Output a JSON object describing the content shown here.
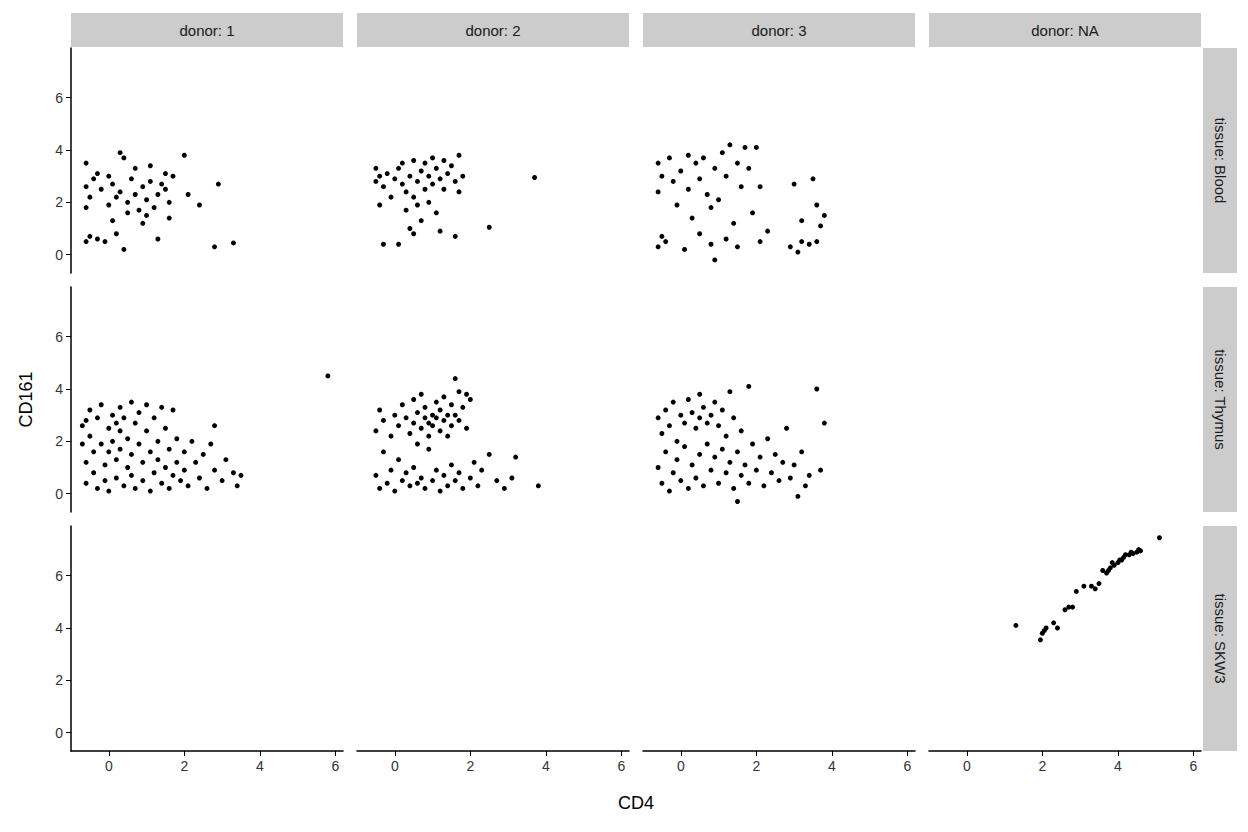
{
  "chart_data": {
    "type": "scatter",
    "x_label": "CD4",
    "y_label": "CD161",
    "color": "#000000",
    "xlim": [
      -1,
      6.2
    ],
    "ylim": [
      -0.7,
      7.9
    ],
    "xticks": [
      0,
      2,
      4,
      6
    ],
    "yticks": [
      0,
      2,
      4,
      6
    ],
    "columns": [
      "donor: 1",
      "donor: 2",
      "donor: 3",
      "donor: NA"
    ],
    "rows": [
      "tissue: Blood",
      "tissue: Thymus",
      "tissue: SKW3"
    ],
    "panels": [
      {
        "column": "donor: 1",
        "row": "tissue: Blood",
        "x": [
          -0.6,
          -0.6,
          -0.5,
          -0.6,
          -0.4,
          -0.3,
          -0.5,
          -0.6,
          -0.3,
          -0.2,
          0,
          0.1,
          0.0,
          0.2,
          0.1,
          0.3,
          0.4,
          0.3,
          0.5,
          0.4,
          0.5,
          0.6,
          0.7,
          0.7,
          0.8,
          0.9,
          0.9,
          1.0,
          1.1,
          1.1,
          1.2,
          1.3,
          1.3,
          1.4,
          1.5,
          1.6,
          1.7,
          1.6,
          1.5,
          -0.1,
          2.0,
          2.1,
          2.4,
          2.9,
          2.8,
          3.3,
          0.2,
          1.0
        ],
        "y": [
          3.5,
          2.6,
          2.2,
          1.8,
          2.9,
          3.1,
          0.7,
          0.5,
          0.6,
          2.5,
          3.0,
          2.7,
          1.9,
          2.2,
          1.3,
          3.9,
          3.7,
          2.4,
          2.0,
          0.2,
          1.6,
          2.9,
          2.3,
          3.3,
          1.7,
          2.6,
          1.2,
          2.1,
          3.4,
          2.8,
          1.8,
          2.3,
          0.6,
          2.7,
          3.1,
          2.0,
          3.0,
          1.4,
          2.5,
          0.5,
          3.8,
          2.3,
          1.9,
          2.7,
          0.3,
          0.45,
          0.8,
          1.5
        ]
      },
      {
        "column": "donor: 2",
        "row": "tissue: Blood",
        "x": [
          -0.5,
          -0.4,
          -0.3,
          -0.5,
          -0.2,
          -0.1,
          -0.4,
          0,
          0.1,
          0.2,
          0.2,
          0.3,
          0.4,
          0.5,
          0.5,
          0.6,
          0.7,
          0.8,
          0.8,
          0.9,
          1.0,
          1.0,
          1.1,
          1.2,
          1.3,
          1.3,
          1.4,
          1.5,
          1.6,
          1.7,
          1.8,
          1.7,
          -0.3,
          0.1,
          0.4,
          0.5,
          0.7,
          0.3,
          1.1,
          1.2,
          1.6,
          2.5,
          3.7,
          0.6,
          0.9
        ],
        "y": [
          3.3,
          3.0,
          2.6,
          2.8,
          3.1,
          2.2,
          1.9,
          2.9,
          3.3,
          2.7,
          3.5,
          2.4,
          3.0,
          3.6,
          2.2,
          2.8,
          3.2,
          3.5,
          2.5,
          3.0,
          3.7,
          2.7,
          3.3,
          2.9,
          3.6,
          2.5,
          3.1,
          3.4,
          2.8,
          3.8,
          3.0,
          2.4,
          0.4,
          0.4,
          1.0,
          0.8,
          1.3,
          1.7,
          1.6,
          0.9,
          0.7,
          1.05,
          2.95,
          1.9,
          2.0
        ]
      },
      {
        "column": "donor: 3",
        "row": "tissue: Blood",
        "x": [
          -0.6,
          -0.5,
          -0.6,
          -0.5,
          -0.6,
          -0.4,
          -0.3,
          -0.2,
          -0.1,
          0,
          0.1,
          0.2,
          0.2,
          0.3,
          0.4,
          0.5,
          0.5,
          0.6,
          0.7,
          0.8,
          0.8,
          0.9,
          0.9,
          1.0,
          1.1,
          1.2,
          1.2,
          1.3,
          1.4,
          1.5,
          1.5,
          1.6,
          1.7,
          1.8,
          1.9,
          2.0,
          2.1,
          2.3,
          2.1,
          2.9,
          3.0,
          3.1,
          3.2,
          3.2,
          3.5,
          3.6,
          3.7,
          3.6,
          3.8,
          3.4
        ],
        "y": [
          3.5,
          3.0,
          2.4,
          0.7,
          0.3,
          0.5,
          3.7,
          2.8,
          1.9,
          3.2,
          0.2,
          3.8,
          2.5,
          1.4,
          3.5,
          2.9,
          0.8,
          3.7,
          2.3,
          0.4,
          1.8,
          -0.2,
          3.3,
          2.1,
          3.9,
          3.0,
          0.6,
          4.2,
          1.2,
          3.5,
          0.3,
          2.6,
          4.1,
          3.3,
          1.6,
          4.1,
          2.6,
          0.9,
          0.5,
          0.3,
          2.7,
          0.1,
          1.3,
          0.5,
          2.9,
          1.9,
          1.1,
          0.5,
          1.5,
          0.4
        ]
      },
      {
        "column": "donor: 1",
        "row": "tissue: Thymus",
        "x": [
          -0.7,
          -0.7,
          -0.6,
          -0.6,
          -0.5,
          -0.5,
          -0.4,
          -0.4,
          -0.3,
          -0.3,
          -0.2,
          -0.2,
          -0.1,
          -0.1,
          0,
          0,
          0,
          0.1,
          0.1,
          0.2,
          0.2,
          0.3,
          0.3,
          0.3,
          0.4,
          0.4,
          0.5,
          0.5,
          0.6,
          0.6,
          0.6,
          0.7,
          0.7,
          0.8,
          0.8,
          0.9,
          0.9,
          1.0,
          1.0,
          1.1,
          1.1,
          1.2,
          1.2,
          1.3,
          1.3,
          1.4,
          1.4,
          1.5,
          1.5,
          1.6,
          1.6,
          1.7,
          1.7,
          1.8,
          1.8,
          1.9,
          2.0,
          2.0,
          2.1,
          2.2,
          2.3,
          2.4,
          2.5,
          2.6,
          2.7,
          2.8,
          2.8,
          3.0,
          3.1,
          3.3,
          3.4,
          3.5,
          5.8,
          -0.6,
          0.2
        ],
        "y": [
          2.6,
          1.9,
          1.2,
          0.4,
          3.2,
          2.2,
          1.6,
          0.8,
          2.9,
          0.2,
          3.4,
          1.9,
          1.1,
          0.5,
          2.5,
          1.6,
          0.1,
          3.0,
          2.0,
          1.3,
          0.6,
          3.3,
          2.4,
          1.7,
          0.3,
          2.9,
          1.0,
          2.1,
          3.5,
          1.5,
          0.7,
          2.7,
          0.2,
          1.9,
          3.1,
          1.2,
          0.5,
          2.4,
          3.4,
          1.6,
          0.1,
          2.9,
          0.8,
          2.0,
          1.3,
          3.3,
          0.4,
          2.5,
          1.0,
          1.7,
          0.2,
          3.2,
          0.7,
          2.1,
          1.2,
          0.5,
          1.6,
          0.9,
          0.3,
          2.0,
          1.2,
          0.6,
          1.5,
          0.2,
          1.9,
          2.6,
          0.9,
          0.5,
          1.3,
          0.8,
          0.3,
          0.7,
          4.5,
          2.8,
          2.7
        ]
      },
      {
        "column": "donor: 2",
        "row": "tissue: Thymus",
        "x": [
          -0.5,
          -0.5,
          -0.4,
          -0.4,
          -0.3,
          -0.3,
          -0.2,
          -0.1,
          -0.1,
          0,
          0,
          0.1,
          0.1,
          0.2,
          0.2,
          0.3,
          0.3,
          0.4,
          0.4,
          0.5,
          0.5,
          0.5,
          0.6,
          0.6,
          0.7,
          0.7,
          0.7,
          0.8,
          0.8,
          0.8,
          0.9,
          0.9,
          0.9,
          1.0,
          1.0,
          1.0,
          1.1,
          1.1,
          1.1,
          1.2,
          1.2,
          1.2,
          1.3,
          1.3,
          1.3,
          1.4,
          1.4,
          1.4,
          1.5,
          1.5,
          1.5,
          1.6,
          1.6,
          1.7,
          1.7,
          1.7,
          1.8,
          1.8,
          1.9,
          2.0,
          2.1,
          2.2,
          2.3,
          2.5,
          2.7,
          2.9,
          3.1,
          3.2,
          3.8,
          1.6,
          1.9,
          2.0,
          0.6
        ],
        "y": [
          2.4,
          0.7,
          3.2,
          0.2,
          1.6,
          2.8,
          0.4,
          2.2,
          0.9,
          3.0,
          0.1,
          2.6,
          1.3,
          3.4,
          0.5,
          2.9,
          0.8,
          2.3,
          0.3,
          3.6,
          2.7,
          1.0,
          3.1,
          0.4,
          2.5,
          3.8,
          0.6,
          2.9,
          3.3,
          0.2,
          2.7,
          2.2,
          1.7,
          3.0,
          2.6,
          0.5,
          3.5,
          2.9,
          0.9,
          2.4,
          3.2,
          0.1,
          2.8,
          3.7,
          0.7,
          3.0,
          2.2,
          0.3,
          3.4,
          2.6,
          1.1,
          3.0,
          0.5,
          2.8,
          3.9,
          0.8,
          3.3,
          0.2,
          2.5,
          0.6,
          1.2,
          0.3,
          0.9,
          1.5,
          0.5,
          0.2,
          0.6,
          1.4,
          0.3,
          4.4,
          3.8,
          3.6,
          1.9
        ]
      },
      {
        "column": "donor: 3",
        "row": "tissue: Thymus",
        "x": [
          -0.6,
          -0.6,
          -0.5,
          -0.5,
          -0.4,
          -0.4,
          -0.3,
          -0.3,
          -0.2,
          -0.2,
          -0.1,
          -0.1,
          0,
          0,
          0.1,
          0.1,
          0.2,
          0.2,
          0.3,
          0.3,
          0.4,
          0.4,
          0.5,
          0.5,
          0.5,
          0.6,
          0.6,
          0.7,
          0.7,
          0.8,
          0.8,
          0.9,
          0.9,
          1.0,
          1.0,
          1.1,
          1.1,
          1.2,
          1.2,
          1.3,
          1.3,
          1.4,
          1.4,
          1.5,
          1.5,
          1.6,
          1.6,
          1.7,
          1.8,
          1.9,
          2.0,
          2.1,
          2.2,
          2.3,
          2.4,
          2.5,
          2.6,
          2.7,
          2.8,
          2.9,
          3.0,
          3.1,
          3.2,
          3.4,
          3.6,
          3.7,
          3.8,
          3.3,
          1.8
        ],
        "y": [
          2.9,
          1.0,
          2.3,
          0.4,
          3.2,
          1.6,
          0.1,
          2.6,
          3.5,
          0.8,
          2.0,
          1.3,
          3.0,
          0.5,
          2.7,
          1.8,
          3.6,
          0.2,
          3.1,
          1.1,
          2.5,
          0.6,
          3.8,
          2.9,
          1.5,
          3.3,
          0.3,
          2.7,
          1.9,
          3.0,
          0.9,
          3.5,
          1.4,
          2.6,
          0.4,
          3.2,
          1.7,
          0.8,
          2.2,
          3.9,
          1.2,
          0.2,
          2.9,
          1.6,
          -0.3,
          0.7,
          2.4,
          1.1,
          0.4,
          1.9,
          0.9,
          1.4,
          0.3,
          2.1,
          0.8,
          1.5,
          0.5,
          1.2,
          2.5,
          0.6,
          1.1,
          -0.1,
          1.6,
          0.7,
          4.0,
          0.9,
          2.7,
          0.3,
          4.1
        ]
      },
      {
        "column": "donor: NA",
        "row": "tissue: SKW3",
        "x": [
          1.3,
          1.95,
          2.0,
          2.1,
          2.3,
          2.4,
          2.6,
          2.7,
          2.8,
          2.9,
          3.1,
          3.3,
          3.5,
          3.6,
          3.7,
          3.8,
          3.85,
          3.9,
          4.0,
          4.05,
          4.1,
          4.15,
          4.2,
          4.3,
          4.35,
          4.4,
          4.5,
          4.55,
          4.6,
          5.1,
          2.05,
          3.4,
          3.75
        ],
        "y": [
          4.1,
          3.55,
          3.8,
          4.0,
          4.2,
          4.0,
          4.7,
          4.8,
          4.8,
          5.4,
          5.6,
          5.6,
          5.7,
          6.2,
          6.1,
          6.3,
          6.5,
          6.4,
          6.5,
          6.6,
          6.6,
          6.7,
          6.8,
          6.8,
          6.9,
          6.85,
          6.9,
          7.0,
          6.95,
          7.45,
          3.9,
          5.5,
          6.2
        ]
      }
    ]
  }
}
